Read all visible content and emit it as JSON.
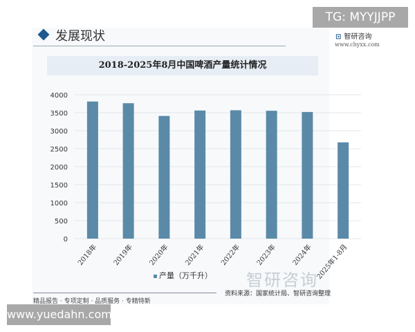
{
  "header": {
    "section_title": "发展现状",
    "logo_text": "智研咨询",
    "logo_url": "www.chyxx.com"
  },
  "overlay": {
    "tg": "TG: MYYJJPP",
    "site": "www.yuedahn.com"
  },
  "footer": {
    "tagline": "精品报告 · 专项定制 · 品质服务 · 专精特新",
    "source": "资料来源：国家统计局、智研咨询整理",
    "watermark": "智研咨询"
  },
  "chart_data": {
    "type": "bar",
    "title": "2018-2025年8月中国啤酒产量统计情况",
    "categories": [
      "2018年",
      "2019年",
      "2020年",
      "2021年",
      "2022年",
      "2023年",
      "2024年",
      "2025年1-8月"
    ],
    "series": [
      {
        "name": "产量（万千升）",
        "values": [
          3812,
          3765,
          3411,
          3562,
          3569,
          3555,
          3521,
          2677
        ],
        "color": "#5a8aa8"
      }
    ],
    "ylim": [
      0,
      4000
    ],
    "yticks": [
      0,
      500,
      1000,
      1500,
      2000,
      2500,
      3000,
      3500,
      4000
    ],
    "grid": true,
    "legend": "bottom"
  }
}
